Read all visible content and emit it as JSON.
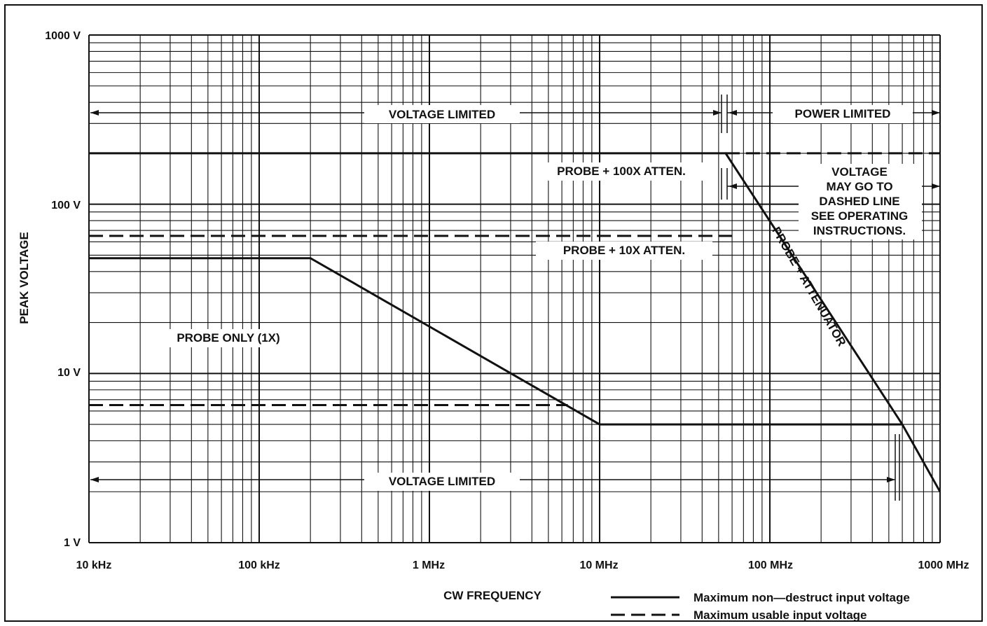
{
  "chart_data": {
    "type": "line",
    "x_scale": "log",
    "y_scale": "log",
    "xlim": [
      "10 kHz",
      "1000 MHz"
    ],
    "ylim": [
      "1 V",
      "1000 V"
    ],
    "xlabel": "CW FREQUENCY",
    "ylabel": "PEAK VOLTAGE",
    "x_ticks": [
      "10 kHz",
      "100 kHz",
      "1 MHz",
      "10 MHz",
      "100 MHz",
      "1000 MHz"
    ],
    "y_ticks": [
      "1 V",
      "10 V",
      "100 V",
      "1000 V"
    ],
    "grid": true,
    "legend_position": "bottom-right",
    "legend": [
      {
        "label": "Maximum non—destruct input voltage",
        "style": "solid"
      },
      {
        "label": "Maximum usable input voltage",
        "style": "dashed"
      }
    ],
    "series": [
      {
        "style": "solid",
        "x_mhz": [
          0.01,
          55,
          600,
          1000
        ],
        "y_volts": [
          200,
          200,
          5,
          2
        ]
      },
      {
        "style": "solid",
        "x_mhz": [
          0.01,
          0.2,
          10,
          600
        ],
        "y_volts": [
          48,
          48,
          5,
          5
        ]
      },
      {
        "style": "dashed",
        "x_mhz": [
          55,
          1000
        ],
        "y_volts": [
          200,
          200
        ]
      },
      {
        "style": "dashed",
        "x_mhz": [
          0.01,
          60
        ],
        "y_volts": [
          65,
          65
        ]
      },
      {
        "style": "dashed",
        "x_mhz": [
          0.01,
          6.5
        ],
        "y_volts": [
          6.5,
          6.5
        ]
      }
    ],
    "annotations": {
      "voltage_limited_top": "VOLTAGE LIMITED",
      "power_limited": "POWER LIMITED",
      "probe_100x": "PROBE + 100X ATTEN.",
      "voltage_may_go": [
        "VOLTAGE",
        "MAY GO TO",
        "DASHED LINE",
        "SEE OPERATING",
        "INSTRUCTIONS."
      ],
      "probe_10x": "PROBE + 10X ATTEN.",
      "probe_attenuator": "PROBE + ATTENUATOR",
      "probe_only": "PROBE ONLY (1X)",
      "voltage_limited_bottom": "VOLTAGE LIMITED"
    }
  }
}
